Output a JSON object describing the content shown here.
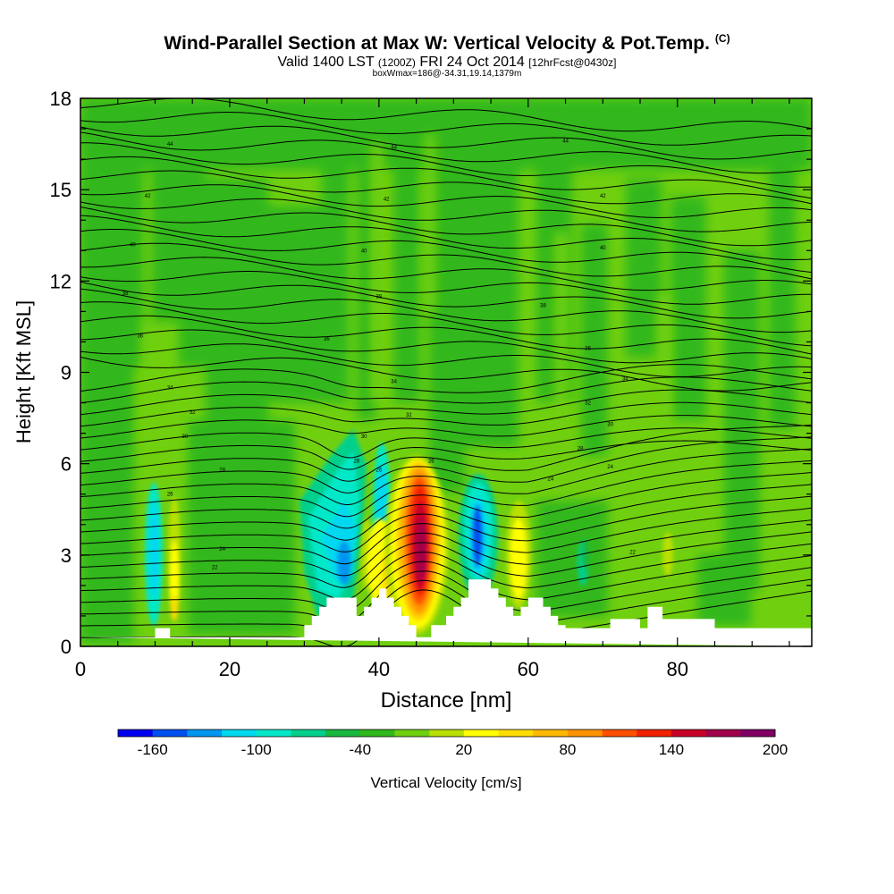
{
  "chart_data": {
    "type": "heatmap",
    "title": "Wind-Parallel Section at Max W: Vertical Velocity & Pot.Temp.",
    "title_mark": "(C)",
    "valid_line": {
      "prefix": "Valid 1400 LST",
      "utc": "(1200Z)",
      "date": "FRI 24 Oct 2014",
      "forecast": "[12hrFcst@0430z]"
    },
    "box_line": "boxWmax=186@-34.31,19.14,1379m",
    "xlabel": "Distance [nm]",
    "ylabel": "Height [Kft MSL]",
    "xlim": [
      0,
      98
    ],
    "ylim": [
      0,
      18
    ],
    "xticks": [
      "0",
      "20",
      "40",
      "60",
      "80"
    ],
    "yticks": [
      "0",
      "3",
      "6",
      "9",
      "12",
      "15",
      "18"
    ],
    "colorbar": {
      "label": "Vertical Velocity [cm/s]",
      "tick_labels": [
        "-160",
        "-100",
        "-40",
        "20",
        "80",
        "140",
        "200"
      ],
      "colors": [
        "#0000f0",
        "#0050f0",
        "#0096f0",
        "#00d8f0",
        "#00e8c8",
        "#00d08c",
        "#18b840",
        "#30b81c",
        "#70d010",
        "#b8e000",
        "#ffff00",
        "#ffdc00",
        "#ffb800",
        "#ff9400",
        "#ff5000",
        "#f02000",
        "#c80028",
        "#a0004c",
        "#800064"
      ]
    },
    "terrain": [
      [
        0,
        0.3
      ],
      [
        10,
        0.3
      ],
      [
        10,
        0.6
      ],
      [
        12,
        0.6
      ],
      [
        12,
        0.3
      ],
      [
        30,
        0.3
      ],
      [
        30,
        0.7
      ],
      [
        31,
        0.7
      ],
      [
        31,
        1.0
      ],
      [
        32,
        1.0
      ],
      [
        32,
        1.3
      ],
      [
        33,
        1.3
      ],
      [
        33,
        1.6
      ],
      [
        37,
        1.6
      ],
      [
        37,
        1.0
      ],
      [
        38,
        1.0
      ],
      [
        38,
        1.3
      ],
      [
        39,
        1.3
      ],
      [
        39,
        1.6
      ],
      [
        40,
        1.6
      ],
      [
        40,
        1.9
      ],
      [
        41,
        1.9
      ],
      [
        41,
        1.6
      ],
      [
        42,
        1.6
      ],
      [
        42,
        1.3
      ],
      [
        43,
        1.3
      ],
      [
        43,
        1.0
      ],
      [
        44,
        1.0
      ],
      [
        44,
        0.7
      ],
      [
        45,
        0.7
      ],
      [
        45,
        0.3
      ],
      [
        47,
        0.3
      ],
      [
        47,
        0.7
      ],
      [
        49,
        0.7
      ],
      [
        49,
        1.0
      ],
      [
        50,
        1.0
      ],
      [
        50,
        1.3
      ],
      [
        51,
        1.3
      ],
      [
        51,
        1.6
      ],
      [
        52,
        1.6
      ],
      [
        52,
        2.2
      ],
      [
        55,
        2.2
      ],
      [
        55,
        1.9
      ],
      [
        56,
        1.9
      ],
      [
        56,
        1.6
      ],
      [
        57,
        1.6
      ],
      [
        57,
        1.3
      ],
      [
        58,
        1.3
      ],
      [
        58,
        1.0
      ],
      [
        59,
        1.0
      ],
      [
        59,
        1.3
      ],
      [
        60,
        1.3
      ],
      [
        60,
        1.6
      ],
      [
        62,
        1.6
      ],
      [
        62,
        1.3
      ],
      [
        63,
        1.3
      ],
      [
        63,
        1.0
      ],
      [
        64,
        1.0
      ],
      [
        64,
        0.7
      ],
      [
        65,
        0.7
      ],
      [
        65,
        0.6
      ],
      [
        71,
        0.6
      ],
      [
        71,
        0.9
      ],
      [
        75,
        0.9
      ],
      [
        75,
        0.6
      ],
      [
        76,
        0.6
      ],
      [
        76,
        1.3
      ],
      [
        78,
        1.3
      ],
      [
        78,
        0.9
      ],
      [
        85,
        0.9
      ],
      [
        85,
        0.6
      ],
      [
        98,
        0.6
      ],
      [
        98,
        0
      ]
    ],
    "theta_labels": [
      {
        "text": "44",
        "x": 12,
        "y": 16.5
      },
      {
        "text": "44",
        "x": 42,
        "y": 16.4
      },
      {
        "text": "44",
        "x": 65,
        "y": 16.6
      },
      {
        "text": "42",
        "x": 9,
        "y": 14.8
      },
      {
        "text": "42",
        "x": 41,
        "y": 14.7
      },
      {
        "text": "42",
        "x": 70,
        "y": 14.8
      },
      {
        "text": "40",
        "x": 7,
        "y": 13.2
      },
      {
        "text": "40",
        "x": 38,
        "y": 13.0
      },
      {
        "text": "40",
        "x": 70,
        "y": 13.1
      },
      {
        "text": "38",
        "x": 6,
        "y": 11.6
      },
      {
        "text": "38",
        "x": 40,
        "y": 11.5
      },
      {
        "text": "38",
        "x": 62,
        "y": 11.2
      },
      {
        "text": "36",
        "x": 8,
        "y": 10.2
      },
      {
        "text": "36",
        "x": 33,
        "y": 10.1
      },
      {
        "text": "36",
        "x": 68,
        "y": 9.8
      },
      {
        "text": "34",
        "x": 12,
        "y": 8.5
      },
      {
        "text": "34",
        "x": 42,
        "y": 8.7
      },
      {
        "text": "34",
        "x": 73,
        "y": 8.8
      },
      {
        "text": "32",
        "x": 15,
        "y": 7.7
      },
      {
        "text": "32",
        "x": 44,
        "y": 7.6
      },
      {
        "text": "32",
        "x": 68,
        "y": 8.0
      },
      {
        "text": "30",
        "x": 14,
        "y": 6.9
      },
      {
        "text": "30",
        "x": 38,
        "y": 6.9
      },
      {
        "text": "30",
        "x": 71,
        "y": 7.3
      },
      {
        "text": "28",
        "x": 19,
        "y": 5.8
      },
      {
        "text": "28",
        "x": 37,
        "y": 6.1
      },
      {
        "text": "28",
        "x": 67,
        "y": 6.5
      },
      {
        "text": "26",
        "x": 12,
        "y": 5.0
      },
      {
        "text": "26",
        "x": 40,
        "y": 5.8
      },
      {
        "text": "26",
        "x": 47,
        "y": 6.1
      },
      {
        "text": "24",
        "x": 19,
        "y": 3.2
      },
      {
        "text": "24",
        "x": 63,
        "y": 5.5
      },
      {
        "text": "24",
        "x": 71,
        "y": 5.9
      },
      {
        "text": "22",
        "x": 18,
        "y": 2.6
      },
      {
        "text": "22",
        "x": 74,
        "y": 3.1
      }
    ]
  }
}
